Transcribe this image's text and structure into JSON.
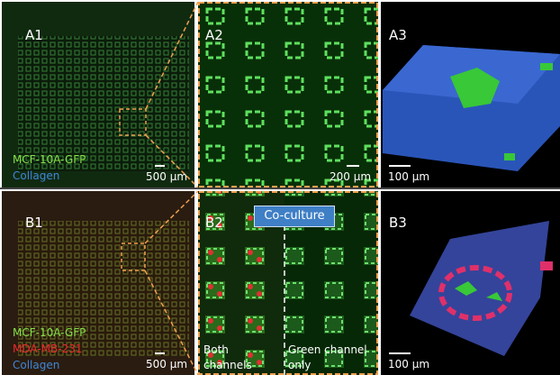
{
  "panels": [
    {
      "label": "A1",
      "annotations": [
        "MCF-10A-GFP",
        "Collagen"
      ],
      "scale_bar": "500 µm"
    },
    {
      "label": "A2",
      "scale_bar": "200 µm"
    },
    {
      "label": "A3",
      "scale_bar": "100 µm"
    },
    {
      "label": "B1",
      "annotations": [
        "MCF-10A-GFP",
        "MDA-MB-231",
        "Collagen"
      ],
      "scale_bar": "500 µm"
    },
    {
      "label": "B2",
      "badge": "Co-culture",
      "left_note": "Both channels",
      "right_note": "Green channel only"
    },
    {
      "label": "B3",
      "scale_bar": "100 µm"
    }
  ]
}
